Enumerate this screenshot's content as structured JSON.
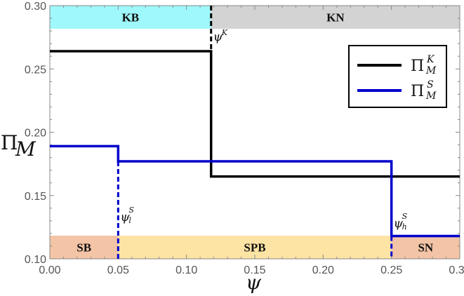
{
  "chart_data": {
    "type": "line",
    "subtype": "step",
    "title": "",
    "xlabel": "ψ",
    "ylabel": "Π_M",
    "xlim": [
      0.0,
      0.3
    ],
    "ylim": [
      0.1,
      0.3
    ],
    "x_ticks": [
      "0.00",
      "0.05",
      "0.10",
      "0.15",
      "0.20",
      "0.25",
      "0.30"
    ],
    "y_ticks": [
      "0.10",
      "0.15",
      "0.20",
      "0.25",
      "0.30"
    ],
    "grid": false,
    "legend_position": "upper right",
    "series": [
      {
        "name": "Π_M^K",
        "legend_base": "Π",
        "legend_sup": "K",
        "legend_sub": "M",
        "color": "#000000",
        "steps": [
          {
            "x_start": 0.0,
            "x_end": 0.118,
            "y": 0.264
          },
          {
            "x_start": 0.118,
            "x_end": 0.3,
            "y": 0.165
          }
        ]
      },
      {
        "name": "Π_M^S",
        "legend_base": "Π",
        "legend_sup": "S",
        "legend_sub": "M",
        "color": "#0000cc",
        "steps": [
          {
            "x_start": 0.0,
            "x_end": 0.05,
            "y": 0.189
          },
          {
            "x_start": 0.05,
            "x_end": 0.25,
            "y": 0.177
          },
          {
            "x_start": 0.25,
            "x_end": 0.3,
            "y": 0.118
          }
        ]
      }
    ],
    "thresholds": [
      {
        "name": "ψ^K",
        "base": "ψ",
        "sup": "K",
        "sub": "",
        "x": 0.118,
        "color": "#000000"
      },
      {
        "name": "ψ_l^S",
        "base": "ψ",
        "sup": "S",
        "sub": "l",
        "x": 0.05,
        "color": "#0000cc"
      },
      {
        "name": "ψ_h^S",
        "base": "ψ",
        "sup": "S",
        "sub": "h",
        "x": 0.25,
        "color": "#0000cc"
      }
    ],
    "regions_top": [
      {
        "label": "KB",
        "x_start": 0.0,
        "x_end": 0.118,
        "color": "#9ff8fb"
      },
      {
        "label": "KN",
        "x_start": 0.118,
        "x_end": 0.3,
        "color": "#d3d3d3"
      }
    ],
    "regions_bottom": [
      {
        "label": "SB",
        "x_start": 0.0,
        "x_end": 0.05,
        "color": "#f3c4a5"
      },
      {
        "label": "SPB",
        "x_start": 0.05,
        "x_end": 0.25,
        "color": "#fde4a4"
      },
      {
        "label": "SN",
        "x_start": 0.25,
        "x_end": 0.3,
        "color": "#f3c4a5"
      }
    ]
  }
}
